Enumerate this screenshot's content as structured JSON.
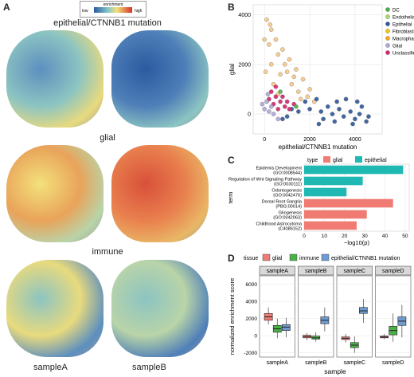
{
  "panelA": {
    "letter": "A",
    "colorbar": {
      "title": "enrichment",
      "low": "low",
      "high": "high"
    },
    "rows": [
      "epithelial/CTNNB1 mutation",
      "glial",
      "immune"
    ],
    "samples": [
      "sampleA",
      "sampleB"
    ],
    "colors": {
      "low": "#2c5aa0",
      "mid": "#f3e17b",
      "high": "#d73027",
      "tissueBg": "#8a8a8a"
    }
  },
  "panelB": {
    "letter": "B"
  },
  "panelC": {
    "letter": "C"
  },
  "panelD": {
    "letter": "D"
  },
  "chart_data": [
    {
      "type": "scatter",
      "xlabel": "epithelial/CTNNB1 mutation",
      "ylabel": "glial",
      "xlim": [
        -500,
        5200
      ],
      "ylim": [
        -800,
        4400
      ],
      "xticks": [
        0,
        2000,
        4000
      ],
      "yticks": [
        0,
        2000,
        4000
      ],
      "legend": [
        {
          "name": "DC",
          "color": "#4daf4a"
        },
        {
          "name": "Endothelial",
          "color": "#a6d96a"
        },
        {
          "name": "Epithelial",
          "color": "#2b5797"
        },
        {
          "name": "Fibroblasts",
          "color": "#f0c419"
        },
        {
          "name": "Macrophages",
          "color": "#f5a623"
        },
        {
          "name": "Glial",
          "color": "#b0a6d8"
        },
        {
          "name": "Unclassified",
          "color": "#d6246e"
        }
      ],
      "clusters": [
        {
          "label": "Fibroblasts",
          "color": "#f6c886",
          "points": [
            [
              100,
              3800
            ],
            [
              300,
              3400
            ],
            [
              500,
              3000
            ],
            [
              800,
              2600
            ],
            [
              1100,
              2200
            ],
            [
              1400,
              1800
            ],
            [
              1700,
              1400
            ],
            [
              2000,
              1000
            ],
            [
              200,
              2800
            ],
            [
              600,
              2400
            ],
            [
              900,
              2000
            ],
            [
              300,
              2000
            ],
            [
              700,
              1600
            ],
            [
              1200,
              1200
            ],
            [
              1500,
              900
            ],
            [
              400,
              1200
            ],
            [
              0,
              3000
            ],
            [
              250,
              3600
            ],
            [
              1000,
              1700
            ],
            [
              1300,
              1500
            ],
            [
              50,
              1700
            ],
            [
              600,
              800
            ],
            [
              1600,
              600
            ],
            [
              1900,
              700
            ],
            [
              2200,
              500
            ]
          ]
        },
        {
          "label": "Epithelial",
          "color": "#2b5797",
          "points": [
            [
              2000,
              200
            ],
            [
              2500,
              100
            ],
            [
              3000,
              0
            ],
            [
              3500,
              -100
            ],
            [
              4000,
              -200
            ],
            [
              4500,
              -300
            ],
            [
              2800,
              300
            ],
            [
              3300,
              200
            ],
            [
              3800,
              100
            ],
            [
              4200,
              0
            ],
            [
              1800,
              500
            ],
            [
              2300,
              600
            ],
            [
              3600,
              600
            ],
            [
              4100,
              500
            ],
            [
              2600,
              -200
            ],
            [
              3100,
              -300
            ],
            [
              3900,
              -400
            ],
            [
              4600,
              -100
            ],
            [
              1500,
              100
            ],
            [
              1200,
              200
            ],
            [
              2400,
              -400
            ],
            [
              3200,
              500
            ],
            [
              4300,
              300
            ],
            [
              800,
              -200
            ],
            [
              1000,
              -100
            ]
          ]
        },
        {
          "label": "Unclassified",
          "color": "#d6246e",
          "points": [
            [
              300,
              900
            ],
            [
              500,
              700
            ],
            [
              700,
              500
            ],
            [
              900,
              300
            ],
            [
              1100,
              200
            ],
            [
              400,
              400
            ],
            [
              600,
              200
            ],
            [
              200,
              600
            ],
            [
              800,
              700
            ],
            [
              1000,
              500
            ],
            [
              1300,
              400
            ],
            [
              500,
              1100
            ]
          ]
        },
        {
          "label": "Glial",
          "color": "#b0a6d8",
          "points": [
            [
              100,
              500
            ],
            [
              300,
              300
            ],
            [
              0,
              200
            ],
            [
              200,
              100
            ],
            [
              400,
              0
            ],
            [
              -100,
              400
            ],
            [
              600,
              -200
            ],
            [
              150,
              800
            ]
          ]
        },
        {
          "label": "DC",
          "color": "#4daf4a",
          "points": [
            [
              700,
              900
            ],
            [
              1400,
              300
            ]
          ]
        }
      ]
    },
    {
      "type": "bar",
      "legend_title": "type",
      "series_legend": [
        {
          "name": "glial",
          "color": "#f07b72"
        },
        {
          "name": "epithelial",
          "color": "#20b8b3"
        }
      ],
      "categories": [
        [
          "Epidemis Development",
          "(GO:0008544)"
        ],
        [
          "Regulation of Wnt Signaling Pathway",
          "(GO:0030111)"
        ],
        [
          "Odontogenesis",
          "(GO:0042476)"
        ],
        [
          "Dorsal Root Ganglia",
          "(PBG:00014)"
        ],
        [
          "Gliogenesis",
          "(GO:0042063)"
        ],
        [
          "Childhood Astrocytoma",
          "(C4086152)"
        ]
      ],
      "values": [
        49,
        29,
        21,
        44,
        31,
        26
      ],
      "types": [
        "epithelial",
        "epithelial",
        "epithelial",
        "glial",
        "glial",
        "glial"
      ],
      "xlabel": "−log10(p)",
      "ylabel": "term",
      "xlim": [
        0,
        52
      ],
      "xticks": [
        0,
        10,
        20,
        30,
        40,
        50
      ]
    },
    {
      "type": "box",
      "legend_title": "tissue",
      "series_legend": [
        {
          "name": "glial",
          "color": "#f07b72"
        },
        {
          "name": "immune",
          "color": "#4daf4a"
        },
        {
          "name": "epithelial/CTNNB1 mutation",
          "color": "#6f9bd1"
        }
      ],
      "facets": [
        {
          "name": "sampleA",
          "boxes": [
            [
              1300,
              1800,
              2200,
              2600,
              3300
            ],
            [
              -300,
              400,
              800,
              1200,
              2000
            ],
            [
              -200,
              600,
              1000,
              1300,
              2100
            ]
          ]
        },
        {
          "name": "sampleB",
          "boxes": [
            [
              -500,
              -250,
              -100,
              50,
              300
            ],
            [
              -700,
              -400,
              -250,
              -50,
              400
            ],
            [
              500,
              1400,
              1800,
              2200,
              3300
            ]
          ]
        },
        {
          "name": "sampleC",
          "boxes": [
            [
              -800,
              -450,
              -300,
              -150,
              200
            ],
            [
              -2000,
              -1400,
              -1100,
              -800,
              -100
            ],
            [
              1500,
              2600,
              2900,
              3300,
              4300
            ]
          ]
        },
        {
          "name": "sampleD",
          "boxes": [
            [
              -400,
              -250,
              -150,
              -50,
              200
            ],
            [
              -700,
              100,
              600,
              1100,
              2600
            ],
            [
              -200,
              1200,
              1700,
              2200,
              3600
            ]
          ]
        }
      ],
      "ylabel": "normalized enrichment score",
      "xlabel": "sample",
      "ylim": [
        -2500,
        7000
      ],
      "yticks": [
        -2000,
        0,
        2000,
        4000,
        6000
      ]
    }
  ]
}
